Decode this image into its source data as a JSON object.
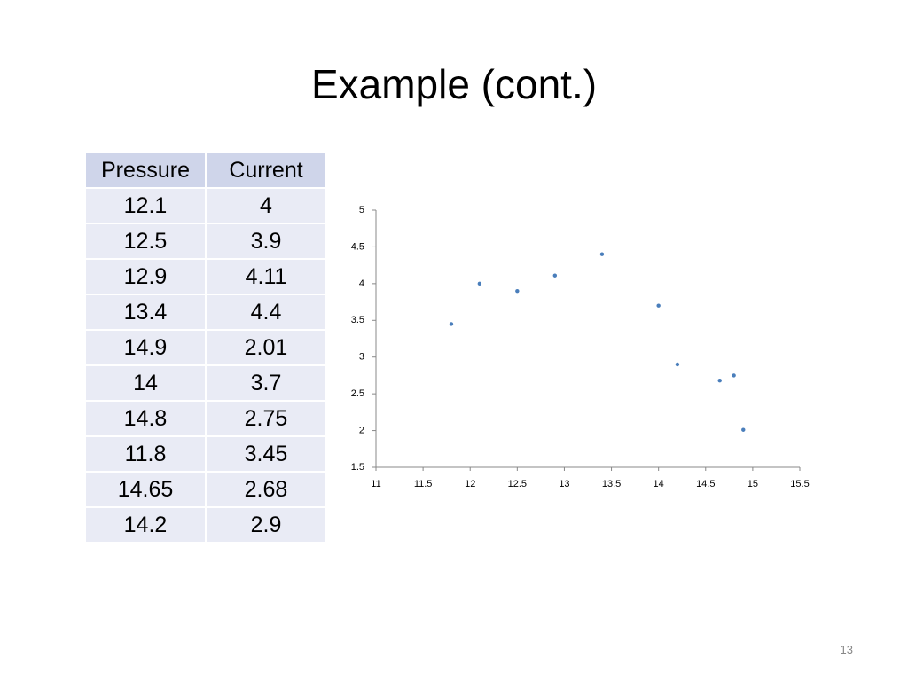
{
  "title": "Example (cont.)",
  "table": {
    "header": [
      "Pressure",
      "Current"
    ],
    "rows": [
      [
        12.1,
        4
      ],
      [
        12.5,
        3.9
      ],
      [
        12.9,
        4.11
      ],
      [
        13.4,
        4.4
      ],
      [
        14.9,
        2.01
      ],
      [
        14,
        3.7
      ],
      [
        14.8,
        2.75
      ],
      [
        11.8,
        3.45
      ],
      [
        14.65,
        2.68
      ],
      [
        14.2,
        2.9
      ]
    ]
  },
  "chart_data": {
    "type": "scatter",
    "color": "#4a7ebb",
    "x": [
      12.1,
      12.5,
      12.9,
      13.4,
      14.9,
      14,
      14.8,
      11.8,
      14.65,
      14.2
    ],
    "values": [
      4,
      3.9,
      4.11,
      4.4,
      2.01,
      3.7,
      2.75,
      3.45,
      2.68,
      2.9
    ],
    "xlim": [
      11,
      15.5
    ],
    "xticks": [
      11,
      11.5,
      12,
      12.5,
      13,
      13.5,
      14,
      14.5,
      15,
      15.5
    ],
    "ylim": [
      1.5,
      5
    ],
    "yticks": [
      1.5,
      2,
      2.5,
      3,
      3.5,
      4,
      4.5,
      5
    ]
  },
  "slide_number": "13"
}
